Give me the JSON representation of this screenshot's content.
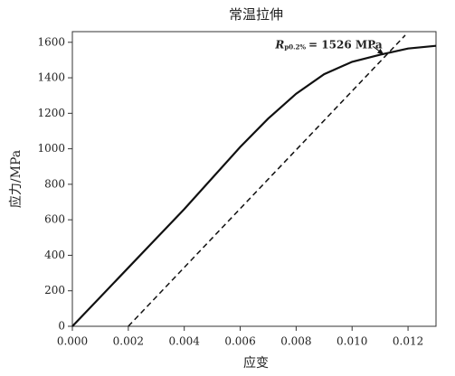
{
  "chart_data": {
    "type": "line",
    "title": "常温拉伸",
    "x_label": "应变",
    "y_label": "应力/MPa",
    "xlim": [
      0,
      0.013
    ],
    "ylim": [
      0,
      1660
    ],
    "xticks": [
      {
        "value": 0,
        "label": "0.000"
      },
      0.002,
      0.004,
      0.006,
      0.008,
      {
        "value": 0.01,
        "label": "0.010"
      },
      0.012
    ],
    "yticks": [
      0,
      200,
      400,
      600,
      800,
      1000,
      1200,
      1400,
      1600
    ],
    "series": [
      {
        "color": "#111111",
        "style": "solid",
        "x": [
          0,
          0.001,
          0.002,
          0.003,
          0.004,
          0.005,
          0.006,
          0.007,
          0.008,
          0.009,
          0.01,
          0.011,
          0.012,
          0.013
        ],
        "values": [
          0,
          165,
          330,
          495,
          660,
          835,
          1010,
          1170,
          1310,
          1420,
          1490,
          1530,
          1565,
          1580
        ]
      },
      {
        "color": "#111111",
        "style": "dashed",
        "x": [
          0.002,
          0.0119
        ],
        "values": [
          0,
          1640
        ]
      }
    ],
    "annotation": {
      "symbol": "R",
      "subscript": "p0.2%",
      "text": "= 1526 MPa",
      "x": 0.0112,
      "y": 1526
    }
  }
}
